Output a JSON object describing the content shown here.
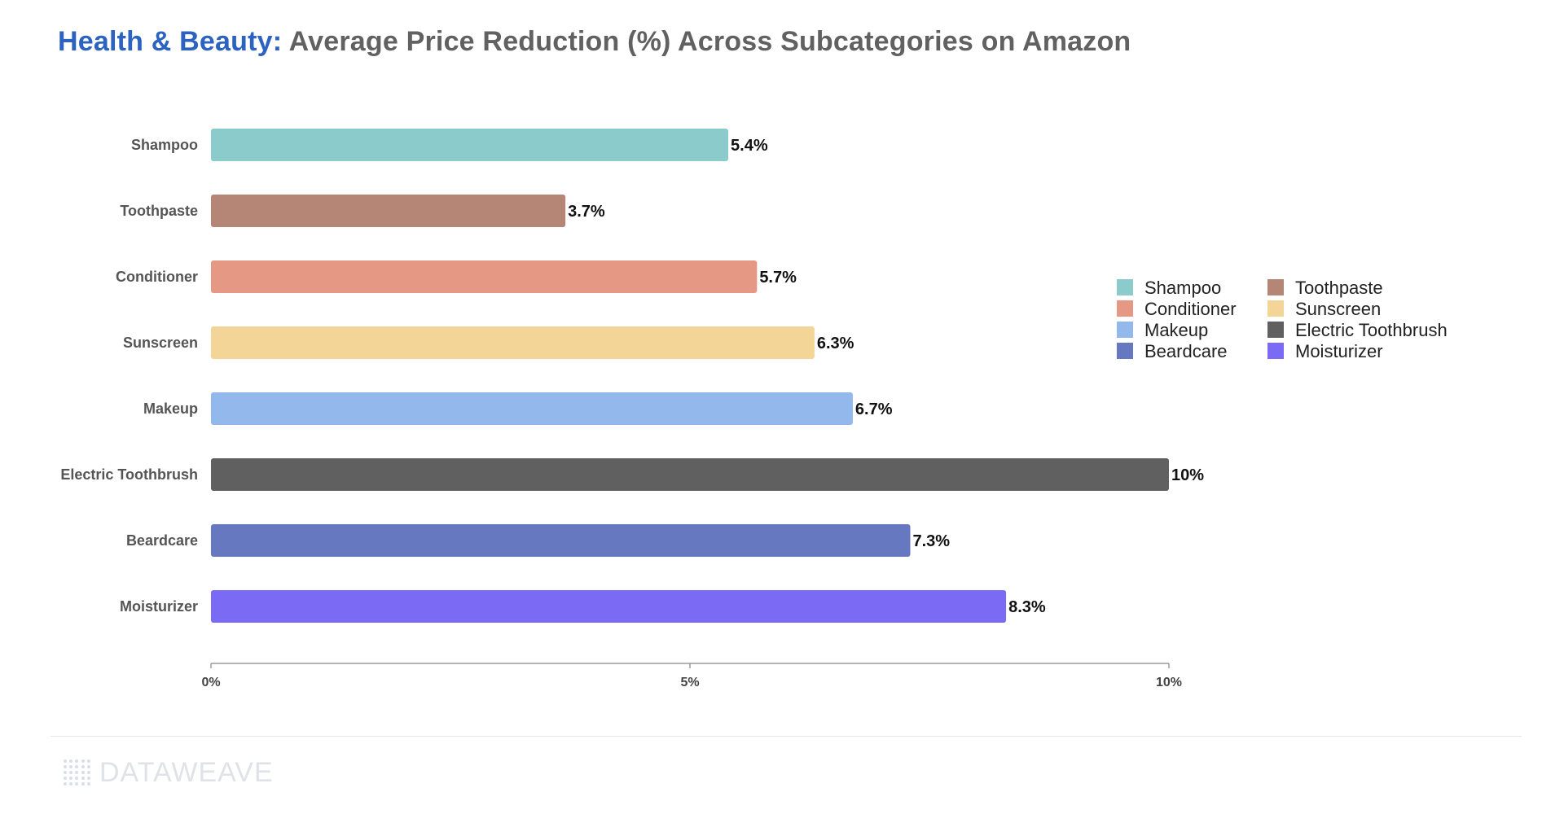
{
  "title": {
    "accent": "Health & Beauty:",
    "rest": "Average Price Reduction (%) Across Subcategories on Amazon"
  },
  "chart_data": {
    "type": "bar",
    "orientation": "horizontal",
    "categories": [
      "Shampoo",
      "Toothpaste",
      "Conditioner",
      "Sunscreen",
      "Makeup",
      "Electric Toothbrush",
      "Beardcare",
      "Moisturizer"
    ],
    "values": [
      5.4,
      3.7,
      5.7,
      6.3,
      6.7,
      10,
      7.3,
      8.3
    ],
    "value_labels": [
      "5.4%",
      "3.7%",
      "5.7%",
      "6.3%",
      "6.7%",
      "10%",
      "7.3%",
      "8.3%"
    ],
    "colors": [
      "#8ccbcb",
      "#b58576",
      "#e59985",
      "#f2d597",
      "#93b8ec",
      "#606060",
      "#6678c0",
      "#7b6af3"
    ],
    "xlim": [
      0,
      10
    ],
    "xticks": [
      0,
      5,
      10
    ],
    "xtick_labels": [
      "0%",
      "5%",
      "10%"
    ],
    "xlabel": "",
    "ylabel": "",
    "grid": false,
    "legend": {
      "placement": "right",
      "columns": 2,
      "items": [
        "Shampoo",
        "Toothpaste",
        "Conditioner",
        "Sunscreen",
        "Makeup",
        "Electric Toothbrush",
        "Beardcare",
        "Moisturizer"
      ]
    }
  },
  "footer": {
    "brand": "DATAWEAVE"
  }
}
